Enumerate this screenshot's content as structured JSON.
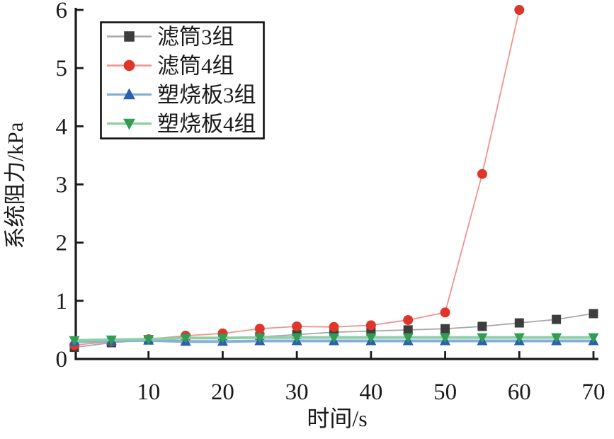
{
  "figure": {
    "background": "#ffffff",
    "axis_color": "#1a1a1a"
  },
  "chart_data": {
    "type": "line",
    "title": "",
    "xlabel": "时间/s",
    "ylabel": "系统阻力/kPa",
    "xlim": [
      0,
      70
    ],
    "ylim": [
      0,
      6
    ],
    "x_ticks": [
      10,
      20,
      30,
      40,
      50,
      60,
      70
    ],
    "y_ticks": [
      0,
      1,
      2,
      3,
      4,
      5,
      6
    ],
    "grid": false,
    "legend_position": "upper-left",
    "x": [
      0,
      5,
      10,
      15,
      20,
      25,
      30,
      35,
      40,
      45,
      50,
      55,
      60,
      65,
      70
    ],
    "series": [
      {
        "name": "滤筒3组",
        "marker": "square",
        "marker_color": "#3d3d3d",
        "line_color": "#a8a8a8",
        "line_width": 1.8,
        "values": [
          0.2,
          0.28,
          0.33,
          0.35,
          0.36,
          0.38,
          0.42,
          0.46,
          0.48,
          0.5,
          0.52,
          0.56,
          0.62,
          0.68,
          0.78
        ]
      },
      {
        "name": "滤筒4组",
        "marker": "circle",
        "marker_color": "#e0352b",
        "line_color": "#f0938c",
        "line_width": 1.8,
        "values": [
          0.24,
          0.3,
          0.34,
          0.4,
          0.44,
          0.52,
          0.56,
          0.55,
          0.58,
          0.67,
          0.8,
          3.18,
          6.0,
          null,
          null
        ]
      },
      {
        "name": "塑烧板3组",
        "marker": "triangle-up",
        "marker_color": "#2c5fae",
        "line_color": "#85aed8",
        "line_width": 4,
        "values": [
          0.3,
          0.31,
          0.32,
          0.3,
          0.3,
          0.31,
          0.31,
          0.31,
          0.31,
          0.31,
          0.31,
          0.31,
          0.31,
          0.31,
          0.31
        ]
      },
      {
        "name": "塑烧板4组",
        "marker": "triangle-down",
        "marker_color": "#2f9e53",
        "line_color": "#8ecfa6",
        "line_width": 4,
        "values": [
          0.32,
          0.33,
          0.34,
          0.36,
          0.36,
          0.37,
          0.37,
          0.37,
          0.37,
          0.37,
          0.37,
          0.37,
          0.37,
          0.37,
          0.37
        ]
      }
    ]
  }
}
